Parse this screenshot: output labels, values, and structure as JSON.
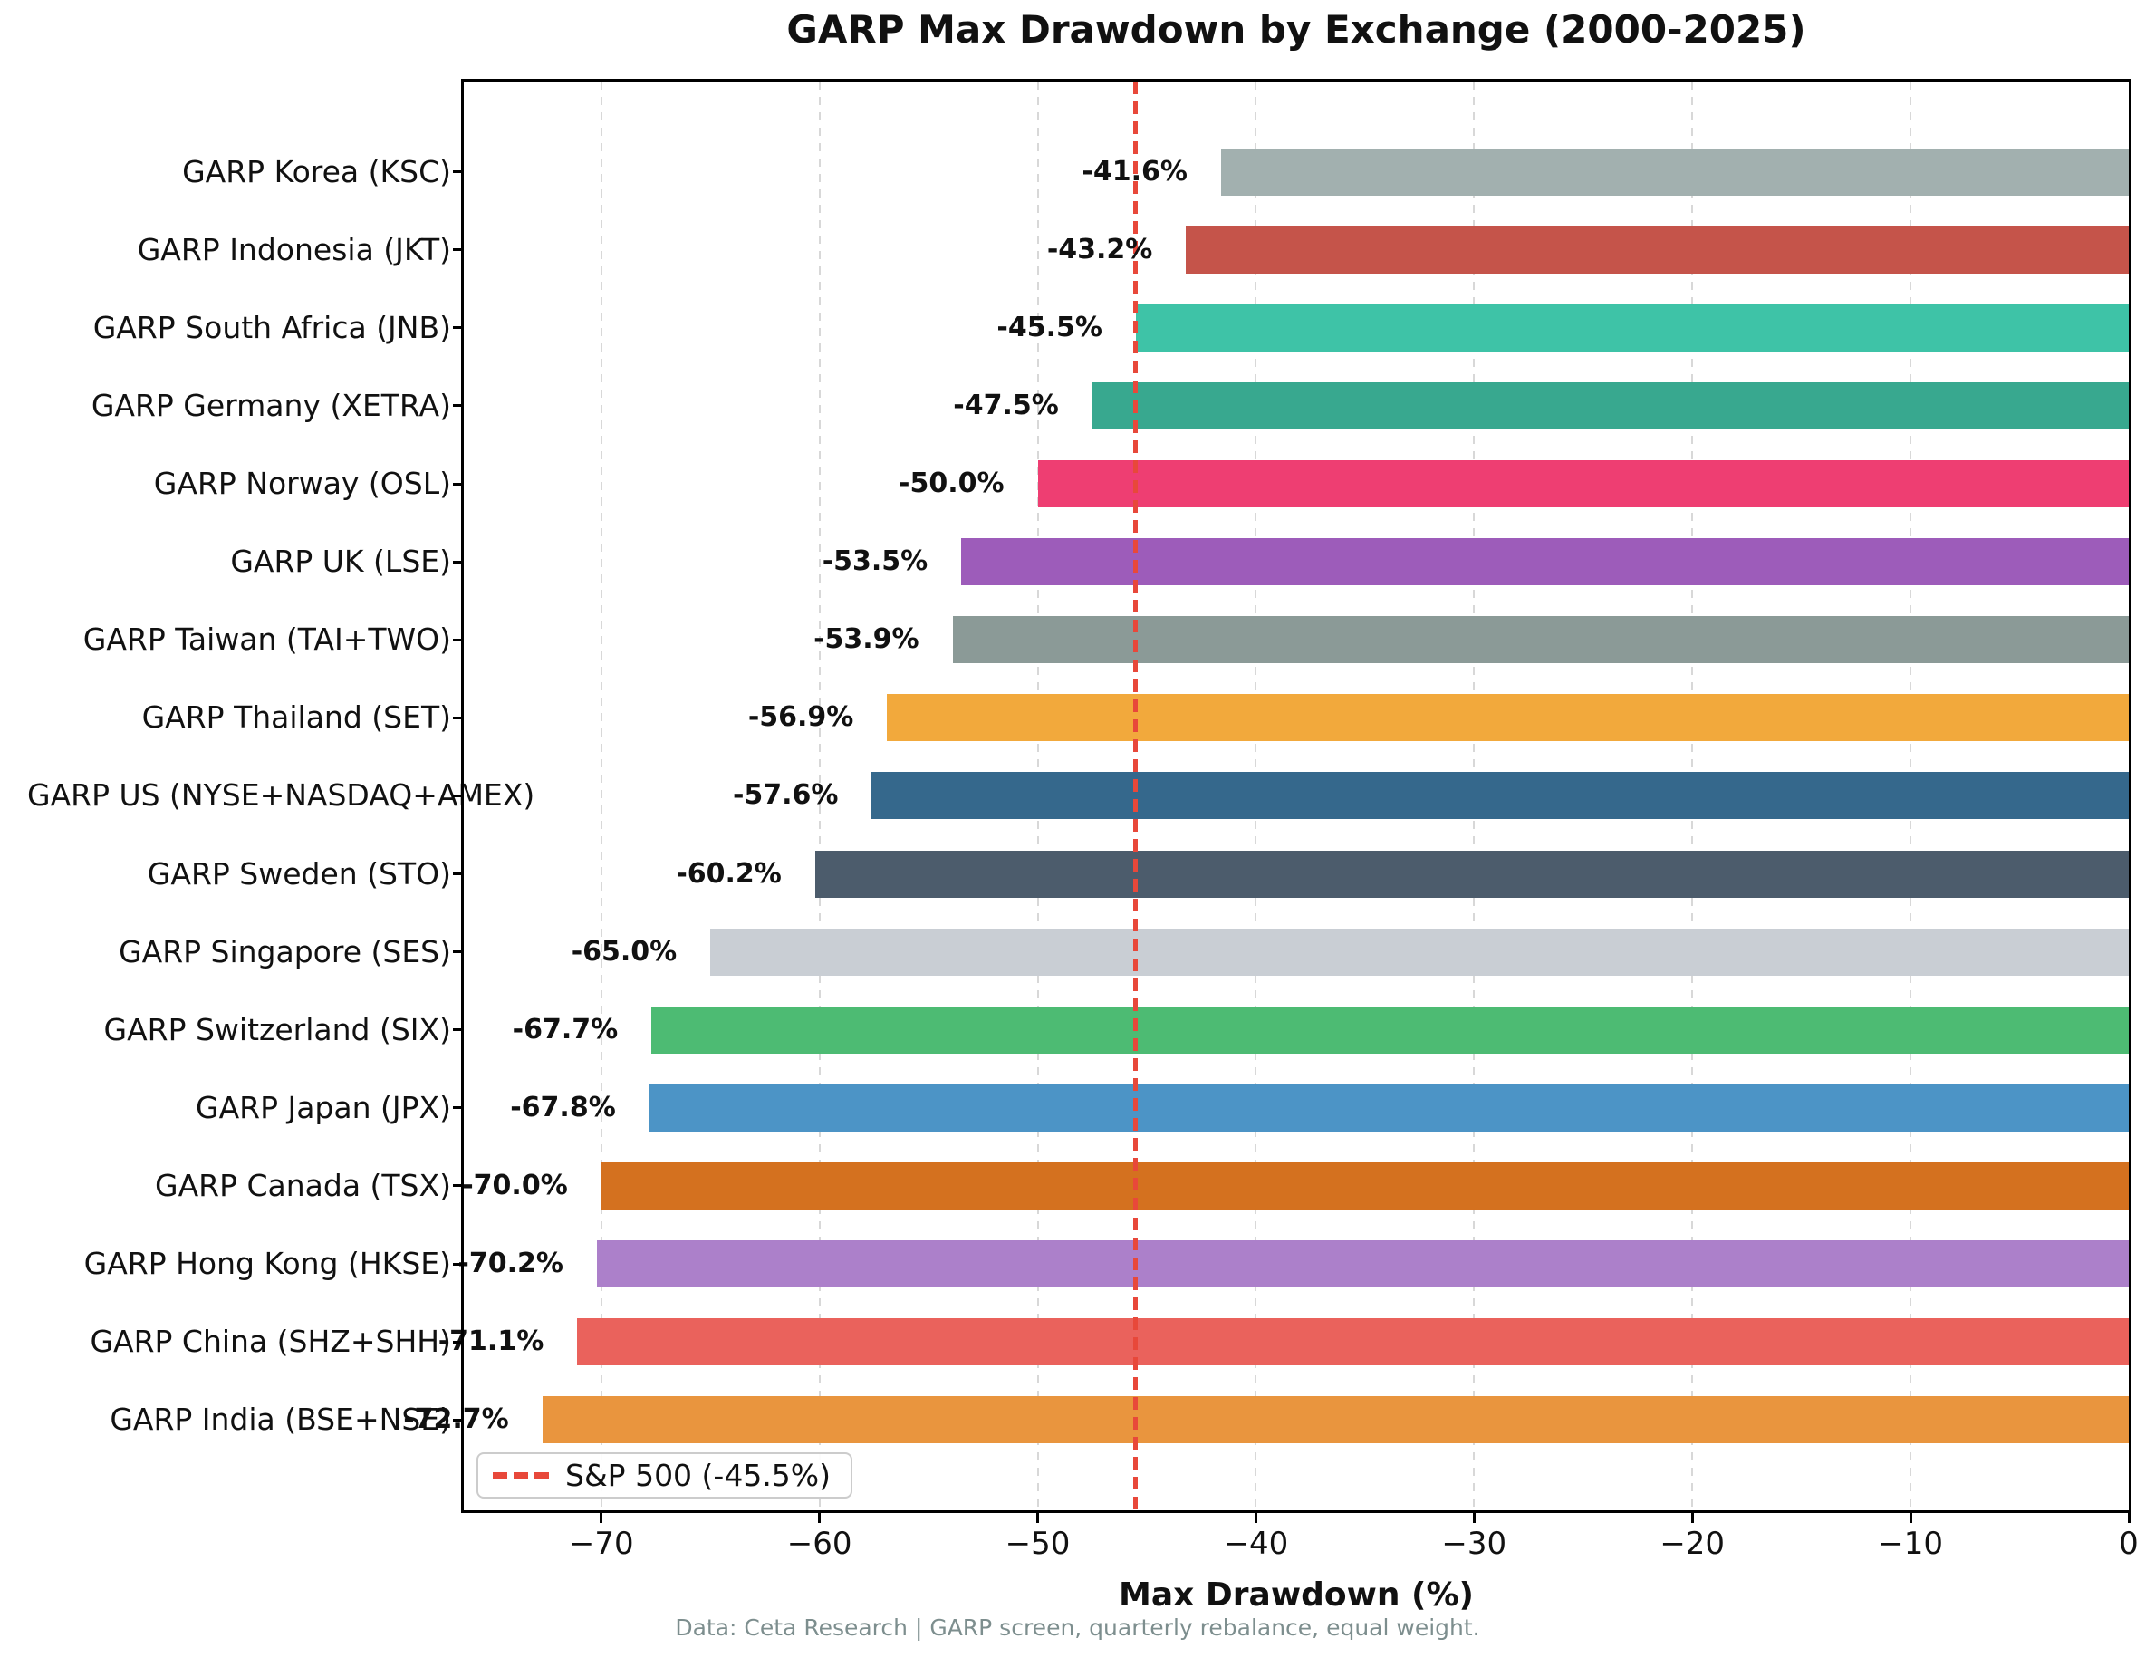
{
  "title": "GARP Max Drawdown by Exchange (2000-2025)",
  "footer": "Data: Ceta Research | GARP screen, quarterly rebalance, equal weight.",
  "legend": {
    "label": "S&P 500 (-45.5%)"
  },
  "colors": {
    "benchmark_line": "#e8483a",
    "gridline": "#d8d8d8",
    "spine": "#000000",
    "footer_text": "#7d8e8e"
  },
  "chart_data": {
    "type": "bar",
    "orientation": "horizontal",
    "title": "GARP Max Drawdown by Exchange (2000-2025)",
    "xlabel": "Max Drawdown (%)",
    "ylabel": "",
    "categories": [
      "GARP Korea (KSC)",
      "GARP Indonesia (JKT)",
      "GARP South Africa (JNB)",
      "GARP Germany (XETRA)",
      "GARP Norway (OSL)",
      "GARP UK (LSE)",
      "GARP Taiwan (TAI+TWO)",
      "GARP Thailand (SET)",
      "GARP US (NYSE+NASDAQ+AMEX)",
      "GARP Sweden (STO)",
      "GARP Singapore (SES)",
      "GARP Switzerland (SIX)",
      "GARP Japan (JPX)",
      "GARP Canada (TSX)",
      "GARP Hong Kong (HKSE)",
      "GARP China (SHZ+SHH)",
      "GARP India (BSE+NSE)"
    ],
    "values": [
      -41.6,
      -43.2,
      -45.5,
      -47.5,
      -50.0,
      -53.5,
      -53.9,
      -56.9,
      -57.6,
      -60.2,
      -65.0,
      -67.7,
      -67.8,
      -70.0,
      -70.2,
      -71.1,
      -72.7
    ],
    "bar_labels": [
      "-41.6%",
      "-43.2%",
      "-45.5%",
      "-47.5%",
      "-50.0%",
      "-53.5%",
      "-53.9%",
      "-56.9%",
      "-57.6%",
      "-60.2%",
      "-65.0%",
      "-67.7%",
      "-67.8%",
      "-70.0%",
      "-70.2%",
      "-71.1%",
      "-72.7%"
    ],
    "bar_colors": [
      "#a2b0af",
      "#c5544a",
      "#3ec3a7",
      "#38a88f",
      "#ee3e72",
      "#9d5cba",
      "#8b9a97",
      "#f2a93c",
      "#35688c",
      "#4c5c6c",
      "#c9ced4",
      "#4dbb73",
      "#4c94c6",
      "#d4711f",
      "#ac80ca",
      "#ea625c",
      "#e9953e"
    ],
    "xlim": [
      -76.3,
      0
    ],
    "xticks": [
      -70,
      -60,
      -50,
      -40,
      -30,
      -20,
      -10,
      0
    ],
    "xtick_labels": [
      "−70",
      "−60",
      "−50",
      "−40",
      "−30",
      "−20",
      "−10",
      "0"
    ],
    "grid": "vertical dashed",
    "legend_position": "lower left",
    "benchmark_line": {
      "label": "S&P 500 (-45.5%)",
      "value": -45.5,
      "style": "dashed"
    }
  }
}
